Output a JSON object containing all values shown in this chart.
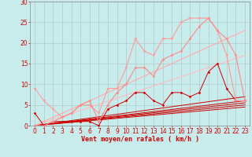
{
  "background_color": "#c8ecec",
  "grid_color": "#b0c8c8",
  "xlabel": "Vent moyen/en rafales ( km/h )",
  "xlabel_color": "#cc0000",
  "xlabel_fontsize": 6,
  "tick_color": "#cc0000",
  "tick_fontsize": 5.5,
  "xlim": [
    -0.5,
    23.5
  ],
  "ylim": [
    0,
    30
  ],
  "yticks": [
    0,
    5,
    10,
    15,
    20,
    25,
    30
  ],
  "xticks": [
    0,
    1,
    2,
    3,
    4,
    5,
    6,
    7,
    8,
    9,
    10,
    11,
    12,
    13,
    14,
    15,
    16,
    17,
    18,
    19,
    20,
    21,
    22,
    23
  ],
  "series": [
    {
      "x": [
        0,
        1,
        2,
        3,
        4,
        5,
        6,
        7,
        8,
        9,
        10,
        11,
        12,
        13,
        14,
        15,
        16,
        17,
        18,
        19,
        20,
        21,
        22,
        23
      ],
      "y": [
        3,
        0,
        1,
        1,
        1,
        1,
        1,
        0,
        4,
        5,
        6,
        8,
        8,
        6,
        5,
        8,
        8,
        7,
        8,
        13,
        15,
        9,
        6,
        6
      ],
      "color": "#cc0000",
      "lw": 0.7,
      "marker": "D",
      "ms": 1.5
    },
    {
      "x": [
        0,
        23
      ],
      "y": [
        0,
        7
      ],
      "color": "#cc0000",
      "lw": 0.7,
      "marker": null,
      "ms": 0
    },
    {
      "x": [
        0,
        23
      ],
      "y": [
        0,
        6
      ],
      "color": "#cc0000",
      "lw": 0.7,
      "marker": null,
      "ms": 0
    },
    {
      "x": [
        0,
        23
      ],
      "y": [
        0,
        5.5
      ],
      "color": "#cc0000",
      "lw": 0.7,
      "marker": null,
      "ms": 0
    },
    {
      "x": [
        0,
        23
      ],
      "y": [
        0,
        5
      ],
      "color": "#cc0000",
      "lw": 0.7,
      "marker": null,
      "ms": 0
    },
    {
      "x": [
        0,
        23
      ],
      "y": [
        0,
        4.5
      ],
      "color": "#cc0000",
      "lw": 0.7,
      "marker": null,
      "ms": 0
    },
    {
      "x": [
        0,
        1,
        2,
        3,
        4,
        5,
        6,
        7,
        8,
        9,
        10,
        11,
        12,
        13,
        14,
        15,
        16,
        17,
        18,
        19,
        20,
        21,
        22,
        23
      ],
      "y": [
        9,
        6,
        4,
        2,
        3,
        5,
        5,
        3,
        9,
        9,
        14,
        21,
        18,
        17,
        21,
        21,
        25,
        26,
        26,
        26,
        23,
        17,
        6,
        6
      ],
      "color": "#ff9999",
      "lw": 0.8,
      "marker": "v",
      "ms": 2.0
    },
    {
      "x": [
        0,
        23
      ],
      "y": [
        0,
        23
      ],
      "color": "#ffaaaa",
      "lw": 0.8,
      "marker": null,
      "ms": 0
    },
    {
      "x": [
        0,
        23
      ],
      "y": [
        0,
        17
      ],
      "color": "#ffbbbb",
      "lw": 0.8,
      "marker": null,
      "ms": 0
    },
    {
      "x": [
        0,
        1,
        2,
        3,
        4,
        5,
        6,
        7,
        8,
        9,
        10,
        11,
        12,
        13,
        14,
        15,
        16,
        17,
        18,
        19,
        20,
        21,
        22,
        23
      ],
      "y": [
        0,
        0,
        1,
        2,
        3,
        5,
        6,
        1,
        5,
        8,
        10,
        14,
        14,
        12,
        16,
        17,
        18,
        21,
        24,
        26,
        23,
        21,
        17,
        6
      ],
      "color": "#ff8888",
      "lw": 0.8,
      "marker": "D",
      "ms": 1.5
    }
  ]
}
